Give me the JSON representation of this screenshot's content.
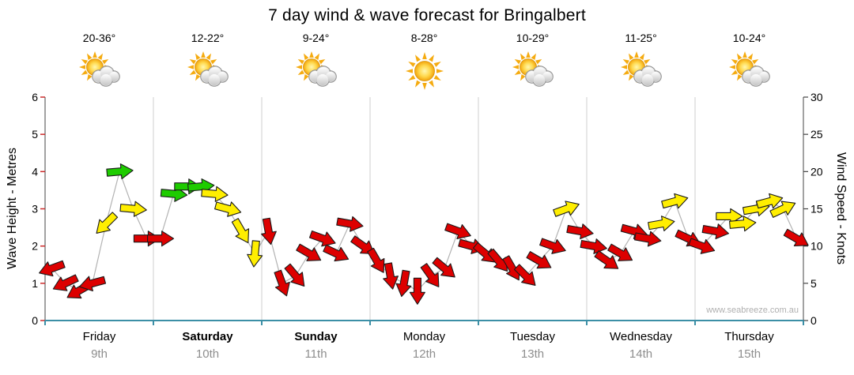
{
  "title": "7 day wind & wave forecast for Bringalbert",
  "watermark": "www.seabreeze.com.au",
  "axes": {
    "left_label": "Wave Height - Metres",
    "right_label": "Wind Speed - Knots",
    "left_ticks": [
      0,
      1,
      2,
      3,
      4,
      5,
      6
    ],
    "right_ticks": [
      0,
      5,
      10,
      15,
      20,
      25,
      30
    ]
  },
  "days": [
    {
      "name": "Friday",
      "date": "9th",
      "temp": "20-36°",
      "icon": "sun-cloud",
      "bold": false
    },
    {
      "name": "Saturday",
      "date": "10th",
      "temp": "12-22°",
      "icon": "sun-cloud",
      "bold": true
    },
    {
      "name": "Sunday",
      "date": "11th",
      "temp": "9-24°",
      "icon": "sun-cloud",
      "bold": true
    },
    {
      "name": "Monday",
      "date": "12th",
      "temp": "8-28°",
      "icon": "sun",
      "bold": false
    },
    {
      "name": "Tuesday",
      "date": "13th",
      "temp": "10-29°",
      "icon": "sun-cloud",
      "bold": false
    },
    {
      "name": "Wednesday",
      "date": "14th",
      "temp": "11-25°",
      "icon": "sun-cloud",
      "bold": false
    },
    {
      "name": "Thursday",
      "date": "15th",
      "temp": "10-24°",
      "icon": "sun-cloud",
      "bold": false
    }
  ],
  "chart_data": {
    "type": "scatter",
    "subtype": "wind-arrows",
    "title": "7 day wind & wave forecast for Bringalbert",
    "x_categories": [
      "Friday 9th",
      "Saturday 10th",
      "Sunday 11th",
      "Monday 12th",
      "Tuesday 13th",
      "Wednesday 14th",
      "Thursday 15th"
    ],
    "points_per_day": 8,
    "y_left": {
      "label": "Wave Height - Metres",
      "range": [
        0,
        6
      ],
      "ticks": [
        0,
        1,
        2,
        3,
        4,
        5,
        6
      ]
    },
    "y_right": {
      "label": "Wind Speed - Knots",
      "range": [
        0,
        30
      ],
      "ticks": [
        0,
        5,
        10,
        15,
        20,
        25,
        30
      ]
    },
    "speed_colors": {
      "red": "#dd0000",
      "yellow": "#ffee00",
      "green": "#1ecc00"
    },
    "series": [
      {
        "day": "Friday",
        "knots": [
          7,
          5,
          4,
          5,
          13,
          20,
          15,
          11
        ],
        "color": [
          "red",
          "red",
          "red",
          "red",
          "yellow",
          "green",
          "yellow",
          "red"
        ],
        "dir_deg": [
          160,
          155,
          150,
          165,
          135,
          355,
          5,
          0
        ]
      },
      {
        "day": "Saturday",
        "knots": [
          11,
          17,
          18,
          18,
          17,
          15,
          12,
          9
        ],
        "color": [
          "red",
          "green",
          "green",
          "green",
          "yellow",
          "yellow",
          "yellow",
          "yellow"
        ],
        "dir_deg": [
          0,
          5,
          0,
          355,
          5,
          15,
          60,
          95
        ]
      },
      {
        "day": "Sunday",
        "knots": [
          12,
          5,
          6,
          9,
          11,
          9,
          13,
          10
        ],
        "color": [
          "red",
          "red",
          "red",
          "red",
          "red",
          "red",
          "red",
          "red"
        ],
        "dir_deg": [
          80,
          70,
          50,
          30,
          20,
          25,
          10,
          35
        ]
      },
      {
        "day": "Monday",
        "knots": [
          8,
          6,
          5,
          4,
          6,
          7,
          12,
          10
        ],
        "color": [
          "red",
          "red",
          "red",
          "red",
          "red",
          "red",
          "red",
          "red"
        ],
        "dir_deg": [
          60,
          80,
          100,
          90,
          55,
          40,
          20,
          15
        ]
      },
      {
        "day": "Tuesday",
        "knots": [
          9,
          8,
          7,
          6,
          8,
          10,
          15,
          12
        ],
        "color": [
          "red",
          "red",
          "red",
          "red",
          "red",
          "red",
          "yellow",
          "red"
        ],
        "dir_deg": [
          40,
          50,
          60,
          45,
          30,
          20,
          340,
          10
        ]
      },
      {
        "day": "Wednesday",
        "knots": [
          10,
          8,
          9,
          12,
          11,
          13,
          16,
          11
        ],
        "color": [
          "red",
          "red",
          "red",
          "red",
          "red",
          "yellow",
          "yellow",
          "red"
        ],
        "dir_deg": [
          10,
          35,
          30,
          15,
          10,
          350,
          345,
          25
        ]
      },
      {
        "day": "Thursday",
        "knots": [
          10,
          12,
          14,
          13,
          15,
          16,
          15,
          11
        ],
        "color": [
          "red",
          "red",
          "yellow",
          "yellow",
          "yellow",
          "yellow",
          "yellow",
          "red"
        ],
        "dir_deg": [
          20,
          10,
          0,
          355,
          350,
          345,
          335,
          30
        ]
      }
    ]
  }
}
